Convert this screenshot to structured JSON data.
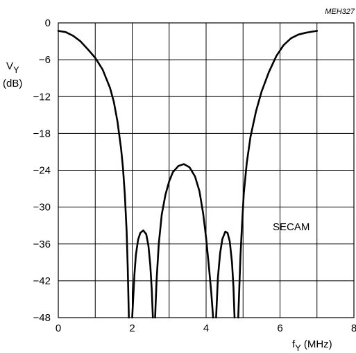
{
  "chart_data": {
    "type": "line",
    "figure_ref": "MEH327",
    "annotation": "SECAM",
    "ylabel_main": "V",
    "ylabel_sub": "Y",
    "ylabel_unit": "(dB)",
    "xlabel_main": "f",
    "xlabel_sub": "Y",
    "xlabel_unit": "(MHz)",
    "xlim": [
      0,
      8
    ],
    "ylim": [
      -48,
      0
    ],
    "x_ticks": [
      0,
      2,
      4,
      6,
      8
    ],
    "x_tick_labels": [
      "0",
      "2",
      "4",
      "6",
      "8"
    ],
    "y_ticks": [
      0,
      -6,
      -12,
      -18,
      -24,
      -30,
      -36,
      -42,
      -48
    ],
    "y_tick_labels": [
      "0",
      "−6",
      "−12",
      "−18",
      "−24",
      "−30",
      "−36",
      "−42",
      "−48"
    ],
    "x_grid_step": 1,
    "grid": true,
    "series": [
      {
        "segments": [
          [
            [
              0.0,
              -1.3
            ],
            [
              0.2,
              -1.5
            ],
            [
              0.4,
              -2.1
            ],
            [
              0.6,
              -3.0
            ],
            [
              0.8,
              -4.3
            ],
            [
              1.0,
              -5.7
            ],
            [
              1.2,
              -7.6
            ],
            [
              1.4,
              -10.6
            ],
            [
              1.5,
              -12.8
            ],
            [
              1.6,
              -16.0
            ],
            [
              1.7,
              -20.5
            ],
            [
              1.75,
              -23.6
            ],
            [
              1.8,
              -28.0
            ],
            [
              1.85,
              -34.0
            ],
            [
              1.88,
              -40.0
            ],
            [
              1.91,
              -48.0
            ]
          ],
          [
            [
              2.0,
              -48.0
            ],
            [
              2.06,
              -41.0
            ],
            [
              2.1,
              -37.8
            ],
            [
              2.16,
              -35.3
            ],
            [
              2.22,
              -34.2
            ],
            [
              2.3,
              -33.8
            ],
            [
              2.38,
              -34.4
            ],
            [
              2.44,
              -36.3
            ],
            [
              2.49,
              -39.5
            ],
            [
              2.53,
              -43.5
            ],
            [
              2.56,
              -48.0
            ]
          ],
          [
            [
              2.62,
              -48.0
            ],
            [
              2.66,
              -42.0
            ],
            [
              2.72,
              -36.0
            ],
            [
              2.8,
              -31.2
            ],
            [
              2.9,
              -28.0
            ],
            [
              3.0,
              -25.8
            ],
            [
              3.1,
              -24.3
            ],
            [
              3.25,
              -23.3
            ],
            [
              3.4,
              -23.0
            ],
            [
              3.55,
              -23.5
            ],
            [
              3.7,
              -25.0
            ],
            [
              3.82,
              -27.4
            ],
            [
              3.92,
              -31.0
            ],
            [
              4.0,
              -35.0
            ],
            [
              4.08,
              -40.0
            ],
            [
              4.14,
              -44.0
            ],
            [
              4.19,
              -48.0
            ]
          ],
          [
            [
              4.27,
              -48.0
            ],
            [
              4.32,
              -41.5
            ],
            [
              4.38,
              -37.5
            ],
            [
              4.44,
              -35.2
            ],
            [
              4.52,
              -34.0
            ],
            [
              4.58,
              -34.2
            ],
            [
              4.64,
              -35.6
            ],
            [
              4.7,
              -39.0
            ],
            [
              4.74,
              -43.0
            ],
            [
              4.77,
              -48.0
            ]
          ],
          [
            [
              4.87,
              -48.0
            ],
            [
              4.9,
              -43.0
            ],
            [
              4.93,
              -38.0
            ],
            [
              4.97,
              -33.0
            ],
            [
              5.02,
              -27.8
            ],
            [
              5.1,
              -22.8
            ],
            [
              5.2,
              -18.6
            ],
            [
              5.35,
              -14.4
            ],
            [
              5.5,
              -11.2
            ],
            [
              5.7,
              -8.0
            ],
            [
              5.9,
              -5.4
            ],
            [
              6.1,
              -3.6
            ],
            [
              6.3,
              -2.5
            ],
            [
              6.5,
              -1.9
            ],
            [
              6.7,
              -1.6
            ],
            [
              6.9,
              -1.4
            ],
            [
              7.0,
              -1.3
            ]
          ]
        ]
      }
    ]
  }
}
